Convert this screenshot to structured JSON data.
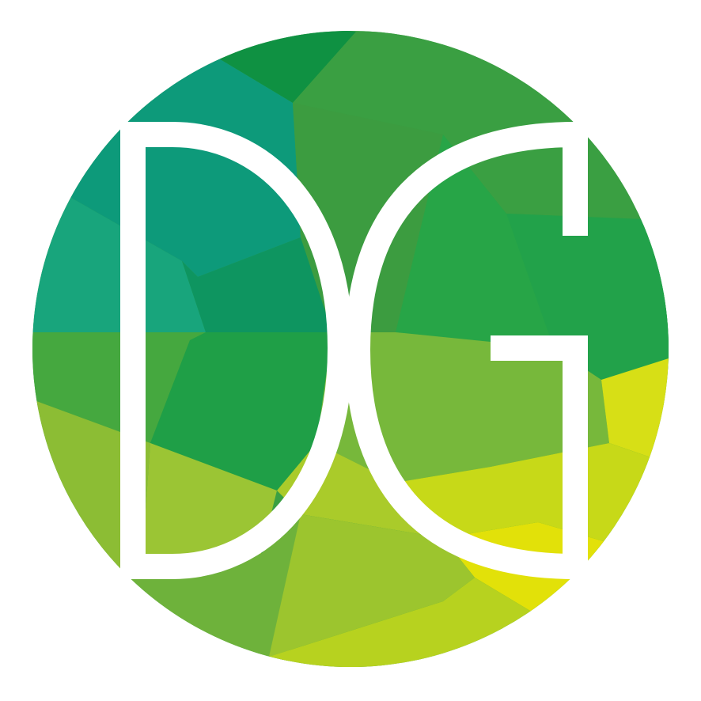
{
  "logo": {
    "monogram": "DG",
    "colors": {
      "background": "#ffffff",
      "letters": "#ffffff",
      "teal": "#0f9b7c",
      "teal_light": "#15a57e",
      "green_dark": "#0f9142",
      "green": "#27a547",
      "green_mid": "#3aa043",
      "green_light": "#77b83b",
      "lime": "#a6cc2f",
      "yellow": "#e0e008"
    }
  }
}
